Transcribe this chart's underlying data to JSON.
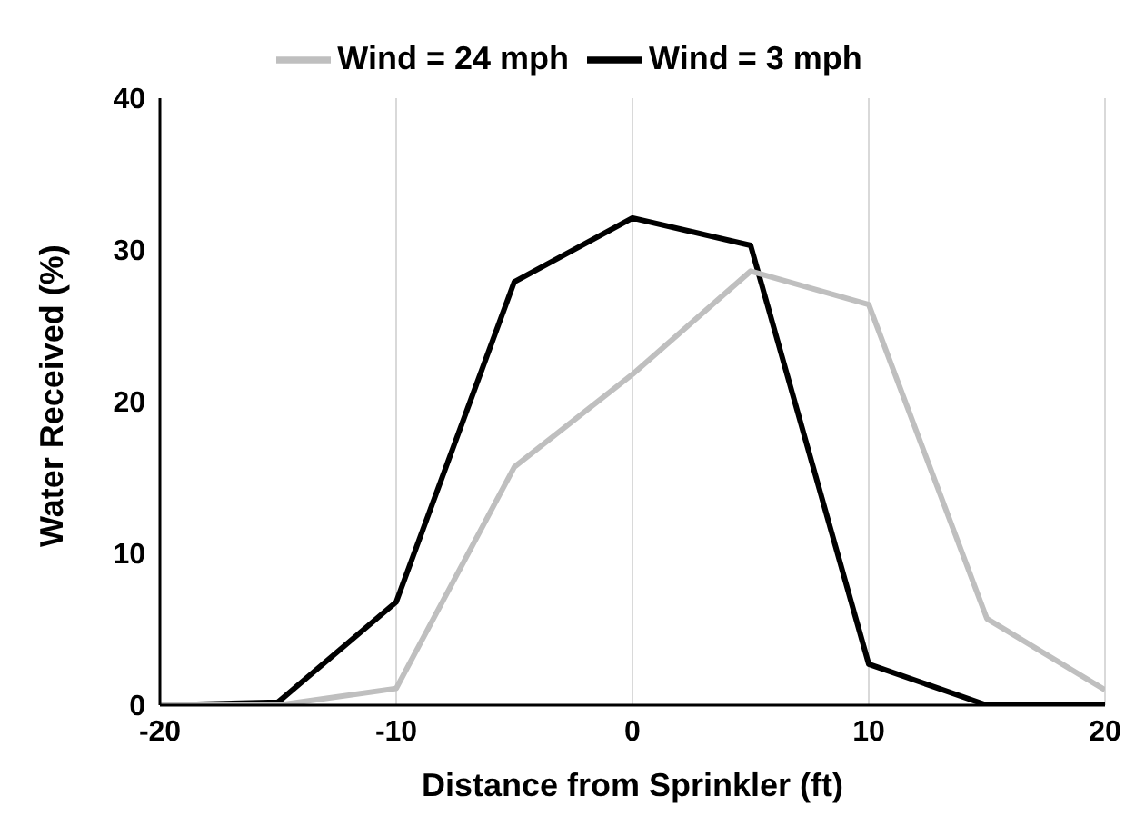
{
  "chart_data": {
    "type": "line",
    "xlabel": "Distance from Sprinkler (ft)",
    "ylabel": "Water Received (%)",
    "x": [
      -20,
      -15,
      -10,
      -5,
      0,
      5,
      10,
      15,
      20
    ],
    "series": [
      {
        "name": "Wind = 3 mph",
        "color": "#000000",
        "values": [
          0,
          0.2,
          6.8,
          27.9,
          32.1,
          30.3,
          2.7,
          0,
          0
        ]
      },
      {
        "name": "Wind = 24 mph",
        "color": "#bfbfbf",
        "values": [
          0,
          0,
          1.1,
          15.7,
          21.8,
          28.6,
          26.4,
          5.7,
          1.0
        ]
      }
    ],
    "xlim": [
      -20,
      20
    ],
    "xticks": [
      -20,
      -10,
      0,
      10,
      20
    ],
    "ylim": [
      0,
      40
    ],
    "yticks": [
      0,
      10,
      20,
      30,
      40
    ],
    "grid": "x",
    "legend": "top",
    "marker": "none",
    "line_style": "solid"
  }
}
